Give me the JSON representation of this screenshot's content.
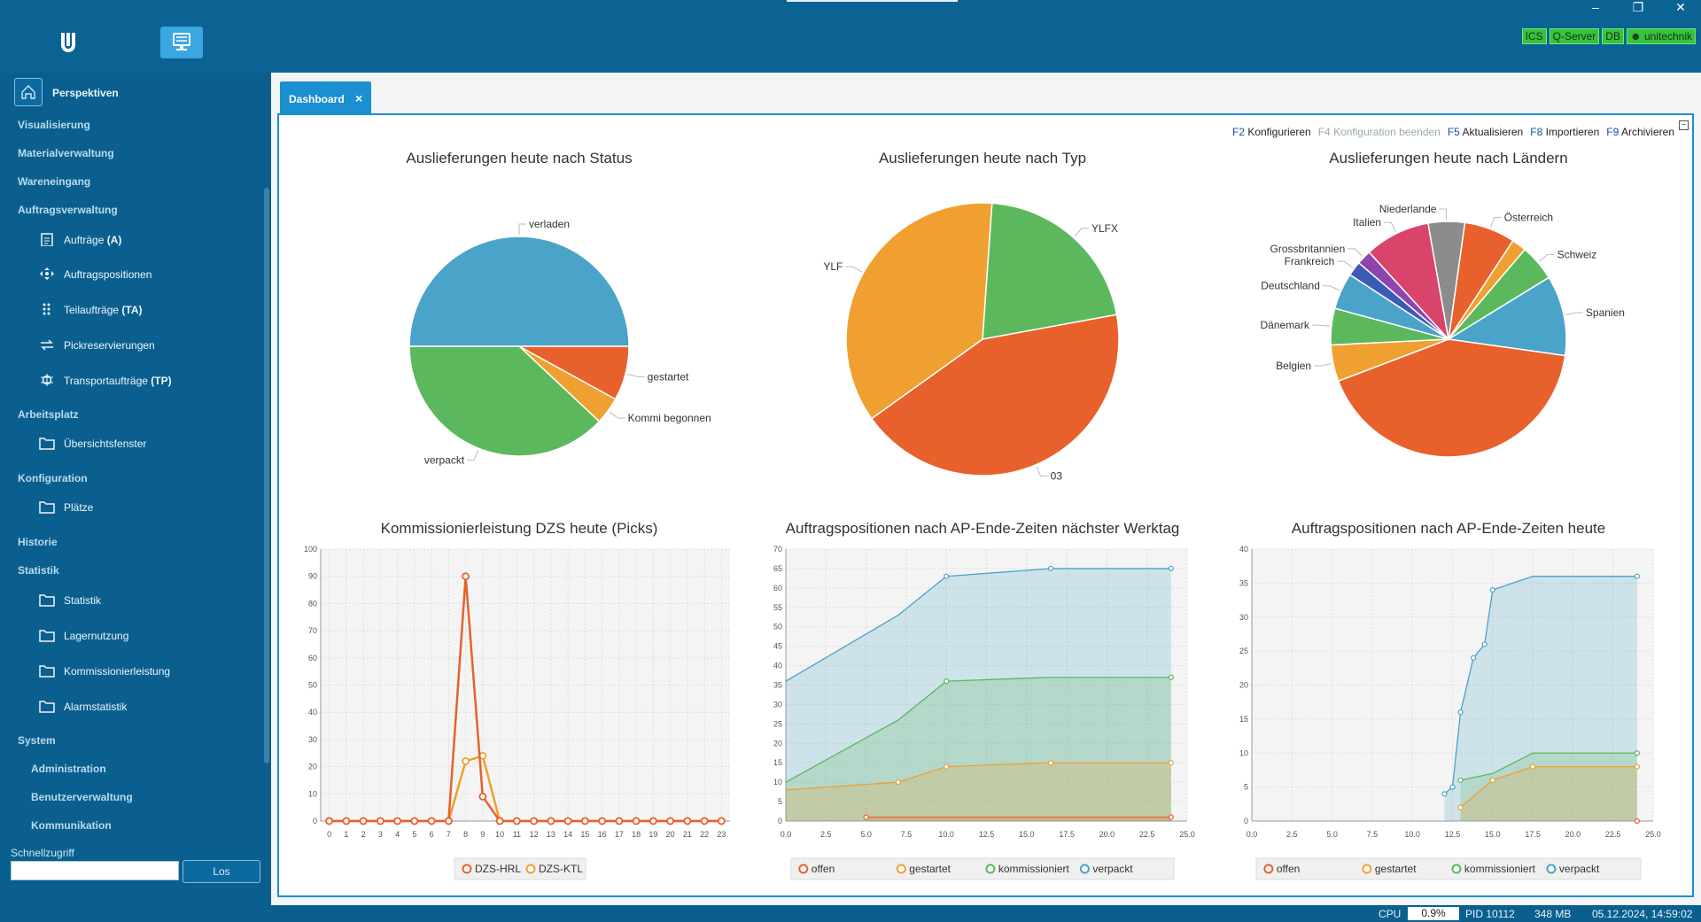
{
  "topbar": {
    "icons": [
      "logo-u-icon",
      "monitor-icon"
    ],
    "window_controls": [
      "minimize",
      "restore",
      "close"
    ],
    "badges": [
      "ICS",
      "Q-Server",
      "DB",
      "unitechnik"
    ]
  },
  "sidebar": {
    "home": "Perspektiven",
    "items": [
      {
        "label": "Visualisierung",
        "type": "section"
      },
      {
        "label": "Materialverwaltung",
        "type": "section"
      },
      {
        "label": "Wareneingang",
        "type": "section"
      },
      {
        "label": "Auftragsverwaltung",
        "type": "section"
      },
      {
        "label": "Aufträge",
        "suffix": "(A)",
        "type": "sub",
        "icon": "clipboard-icon"
      },
      {
        "label": "Auftragspositionen",
        "suffix": "",
        "type": "sub",
        "icon": "move-arrows-icon"
      },
      {
        "label": "Teilaufträge",
        "suffix": "(TA)",
        "type": "sub",
        "icon": "grip-dots-icon"
      },
      {
        "label": "Pickreservierungen",
        "suffix": "",
        "type": "sub",
        "icon": "swap-arrows-icon"
      },
      {
        "label": "Transportaufträge",
        "suffix": "(TP)",
        "type": "sub",
        "icon": "gear-bug-icon"
      },
      {
        "label": "Arbeitsplatz",
        "type": "section"
      },
      {
        "label": "Übersichtsfenster",
        "suffix": "",
        "type": "sub",
        "icon": "folder-icon"
      },
      {
        "label": "Konfiguration",
        "type": "section"
      },
      {
        "label": "Plätze",
        "suffix": "",
        "type": "sub",
        "icon": "folder-icon"
      },
      {
        "label": "Historie",
        "type": "section"
      },
      {
        "label": "Statistik",
        "type": "section"
      },
      {
        "label": "Statistik",
        "suffix": "",
        "type": "sub",
        "icon": "folder-icon"
      },
      {
        "label": "Lagernutzung",
        "suffix": "",
        "type": "sub",
        "icon": "folder-icon"
      },
      {
        "label": "Kommissionierleistung",
        "suffix": "",
        "type": "sub",
        "icon": "folder-icon"
      },
      {
        "label": "Alarmstatistik",
        "suffix": "",
        "type": "sub",
        "icon": "folder-icon"
      },
      {
        "label": "System",
        "type": "section"
      },
      {
        "label": "Administration",
        "type": "section2"
      },
      {
        "label": "Benutzerverwaltung",
        "type": "section2"
      },
      {
        "label": "Kommunikation",
        "type": "section2"
      }
    ],
    "quick_access_label": "Schnellzugriff",
    "quick_access_value": "",
    "go_button": "Los"
  },
  "tab": {
    "label": "Dashboard",
    "close": "×"
  },
  "fkeys": [
    {
      "key": "F2",
      "label": "Konfigurieren",
      "enabled": true
    },
    {
      "key": "F4",
      "label": "Konfiguration beenden",
      "enabled": false
    },
    {
      "key": "F5",
      "label": "Aktualisieren",
      "enabled": true
    },
    {
      "key": "F8",
      "label": "Importieren",
      "enabled": true
    },
    {
      "key": "F9",
      "label": "Archivieren",
      "enabled": true
    }
  ],
  "colors": {
    "blue": "#4aa3c9",
    "green": "#5cb85c",
    "orange": "#e8612c",
    "yellow": "#f0a030",
    "red": "#d9534f",
    "purple": "#8e44ad",
    "gray": "#8c8c8c",
    "navy": "#3b5bb5",
    "pink": "#d9456a"
  },
  "chart_data": [
    {
      "type": "pie",
      "title": "Auslieferungen heute nach Status",
      "slices": [
        {
          "label": "verladen",
          "value": 50,
          "color": "#4aa3c9"
        },
        {
          "label": "gestartet",
          "value": 8,
          "color": "#e8612c"
        },
        {
          "label": "Kommi begonnen",
          "value": 4,
          "color": "#f0a030"
        },
        {
          "label": "verpackt",
          "value": 38,
          "color": "#5cb85c"
        }
      ]
    },
    {
      "type": "pie",
      "title": "Auslieferungen heute nach Typ",
      "slices": [
        {
          "label": "YLFX",
          "value": 21,
          "color": "#5cb85c"
        },
        {
          "label": "03",
          "value": 43,
          "color": "#e8612c"
        },
        {
          "label": "YLF",
          "value": 36,
          "color": "#f0a030"
        }
      ]
    },
    {
      "type": "pie",
      "title": "Auslieferungen heute nach Ländern",
      "slices": [
        {
          "label": "Österreich",
          "value": 7,
          "color": "#e8612c"
        },
        {
          "label": "",
          "value": 2,
          "color": "#f0a030"
        },
        {
          "label": "Schweiz",
          "value": 5,
          "color": "#5cb85c"
        },
        {
          "label": "Spanien",
          "value": 11,
          "color": "#4aa3c9"
        },
        {
          "label": "",
          "value": 42,
          "color": "#e8612c"
        },
        {
          "label": "Belgien",
          "value": 5,
          "color": "#f0a030"
        },
        {
          "label": "Dänemark",
          "value": 5,
          "color": "#5cb85c"
        },
        {
          "label": "Deutschland",
          "value": 5,
          "color": "#4aa3c9"
        },
        {
          "label": "Frankreich",
          "value": 2,
          "color": "#3b5bb5"
        },
        {
          "label": "Grossbritannien",
          "value": 2,
          "color": "#8e44ad"
        },
        {
          "label": "Italien",
          "value": 9,
          "color": "#d9456a"
        },
        {
          "label": "Niederlande",
          "value": 5,
          "color": "#8c8c8c"
        }
      ]
    },
    {
      "type": "line",
      "title": "Kommissionierleistung DZS heute (Picks)",
      "x": [
        0,
        1,
        2,
        3,
        4,
        5,
        6,
        7,
        8,
        9,
        10,
        11,
        12,
        13,
        14,
        15,
        16,
        17,
        18,
        19,
        20,
        21,
        22,
        23
      ],
      "series": [
        {
          "name": "DZS-HRL",
          "color": "#e8612c",
          "values": [
            0,
            0,
            0,
            0,
            0,
            0,
            0,
            0,
            90,
            9,
            0,
            0,
            0,
            0,
            0,
            0,
            0,
            0,
            0,
            0,
            0,
            0,
            0,
            0
          ]
        },
        {
          "name": "DZS-KTL",
          "color": "#f0a030",
          "values": [
            0,
            0,
            0,
            0,
            0,
            0,
            0,
            0,
            22,
            24,
            0,
            0,
            0,
            0,
            0,
            0,
            0,
            0,
            0,
            0,
            0,
            0,
            0,
            0
          ]
        }
      ],
      "xlim": [
        -0.5,
        23.5
      ],
      "ylim": [
        0,
        100
      ],
      "yticks": [
        0,
        10,
        20,
        30,
        40,
        50,
        60,
        70,
        80,
        90,
        100
      ],
      "legend": "bottom"
    },
    {
      "type": "area",
      "title": "Auftragspositionen nach AP-Ende-Zeiten nächster Werktag",
      "xlim": [
        0,
        25
      ],
      "ylim": [
        0,
        70
      ],
      "xticks": [
        "0.0",
        "2.5",
        "5.0",
        "7.5",
        "10.0",
        "12.5",
        "15.0",
        "17.5",
        "20.0",
        "22.5",
        "25.0"
      ],
      "yticks": [
        0,
        5,
        10,
        15,
        20,
        25,
        30,
        35,
        40,
        45,
        50,
        55,
        60,
        65,
        70
      ],
      "series": [
        {
          "name": "offen",
          "color": "#e8612c",
          "points": [
            [
              5,
              1
            ],
            [
              24,
              1
            ]
          ],
          "markers": [
            5,
            24
          ]
        },
        {
          "name": "gestartet",
          "color": "#f0a030",
          "points": [
            [
              0,
              8
            ],
            [
              7,
              10
            ],
            [
              10,
              14
            ],
            [
              16.5,
              15
            ],
            [
              24,
              15
            ]
          ],
          "markers": [
            7,
            10,
            16.5,
            24
          ]
        },
        {
          "name": "kommissioniert",
          "color": "#5cb85c",
          "points": [
            [
              0,
              10
            ],
            [
              7,
              26
            ],
            [
              10,
              36
            ],
            [
              16.5,
              37
            ],
            [
              24,
              37
            ]
          ],
          "markers": [
            10,
            24
          ]
        },
        {
          "name": "verpackt",
          "color": "#4aa3c9",
          "points": [
            [
              0,
              36
            ],
            [
              7,
              53
            ],
            [
              10,
              63
            ],
            [
              16.5,
              65
            ],
            [
              24,
              65
            ]
          ],
          "markers": [
            10,
            16.5,
            24
          ]
        }
      ],
      "legend": "bottom"
    },
    {
      "type": "area",
      "title": "Auftragspositionen nach AP-Ende-Zeiten heute",
      "xlim": [
        0,
        25
      ],
      "ylim": [
        0,
        40
      ],
      "xticks": [
        "0.0",
        "2.5",
        "5.0",
        "7.5",
        "10.0",
        "12.5",
        "15.0",
        "17.5",
        "20.0",
        "22.5",
        "25.0"
      ],
      "yticks": [
        0,
        5,
        10,
        15,
        20,
        25,
        30,
        35,
        40
      ],
      "series": [
        {
          "name": "offen",
          "color": "#e8612c",
          "points": [
            [
              24,
              0
            ]
          ],
          "markers": [
            24
          ]
        },
        {
          "name": "gestartet",
          "color": "#f0a030",
          "points": [
            [
              13,
              2
            ],
            [
              15,
              6
            ],
            [
              17.5,
              8
            ],
            [
              24,
              8
            ]
          ],
          "markers": [
            13,
            15,
            17.5,
            24
          ]
        },
        {
          "name": "kommissioniert",
          "color": "#5cb85c",
          "points": [
            [
              13,
              6
            ],
            [
              15,
              7
            ],
            [
              17.5,
              10
            ],
            [
              24,
              10
            ]
          ],
          "markers": [
            13,
            24
          ]
        },
        {
          "name": "verpackt",
          "color": "#4aa3c9",
          "points": [
            [
              12,
              4
            ],
            [
              12.5,
              5
            ],
            [
              13,
              16
            ],
            [
              13.8,
              24
            ],
            [
              14.5,
              26
            ],
            [
              15,
              34
            ],
            [
              17.5,
              36
            ],
            [
              24,
              36
            ]
          ],
          "markers": [
            12,
            12.5,
            13,
            13.8,
            14.5,
            15,
            24
          ]
        }
      ],
      "legend": "bottom"
    }
  ],
  "statusbar": {
    "cpu_label": "CPU",
    "cpu_value": "0.9%",
    "pid": "PID 10112",
    "memory": "348 MB",
    "datetime": "05.12.2024, 14:59:02"
  }
}
